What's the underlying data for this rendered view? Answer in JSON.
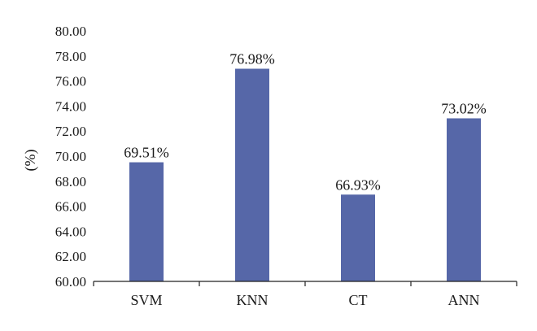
{
  "chart_data": {
    "type": "bar",
    "categories": [
      "SVM",
      "KNN",
      "CT",
      "ANN"
    ],
    "values": [
      69.51,
      76.98,
      66.93,
      73.02
    ],
    "data_labels": [
      "69.51%",
      "76.98%",
      "66.93%",
      "73.02%"
    ],
    "title": "",
    "xlabel": "",
    "ylabel": "(%)",
    "ylim": [
      60,
      80
    ],
    "yticks": [
      "60.00",
      "62.00",
      "64.00",
      "66.00",
      "68.00",
      "70.00",
      "72.00",
      "74.00",
      "76.00",
      "78.00",
      "80.00"
    ],
    "grid": false,
    "legend": "none",
    "bar_color": "#5667a8"
  }
}
